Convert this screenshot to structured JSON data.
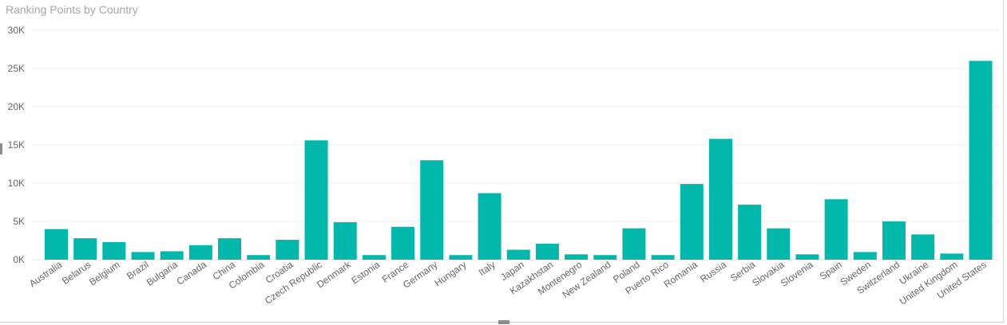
{
  "chart_data": {
    "type": "bar",
    "title": "Ranking Points by Country",
    "xlabel": "",
    "ylabel": "",
    "ylim": [
      0,
      30000
    ],
    "y_ticks": [
      0,
      5000,
      10000,
      15000,
      20000,
      25000,
      30000
    ],
    "y_tick_labels": [
      "0K",
      "5K",
      "10K",
      "15K",
      "20K",
      "25K",
      "30K"
    ],
    "grid": true,
    "legend": "none",
    "bar_color": "#01B8AA",
    "categories": [
      "Australia",
      "Belarus",
      "Belgium",
      "Brazil",
      "Bulgaria",
      "Canada",
      "China",
      "Colombia",
      "Croatia",
      "Czech Republic",
      "Denmark",
      "Estonia",
      "France",
      "Germany",
      "Hungary",
      "Italy",
      "Japan",
      "Kazakhstan",
      "Montenegro",
      "New Zealand",
      "Poland",
      "Puerto Rico",
      "Romania",
      "Russia",
      "Serbia",
      "Slovakia",
      "Slovenia",
      "Spain",
      "Sweden",
      "Switzerland",
      "Ukraine",
      "United Kingdom",
      "United States"
    ],
    "values": [
      4000,
      2800,
      2300,
      1000,
      1100,
      1900,
      2800,
      600,
      2600,
      15600,
      4900,
      600,
      4300,
      13000,
      600,
      8700,
      1300,
      2100,
      700,
      600,
      4100,
      600,
      9900,
      15800,
      7200,
      4100,
      700,
      7900,
      1000,
      5000,
      3300,
      800,
      26000
    ]
  }
}
